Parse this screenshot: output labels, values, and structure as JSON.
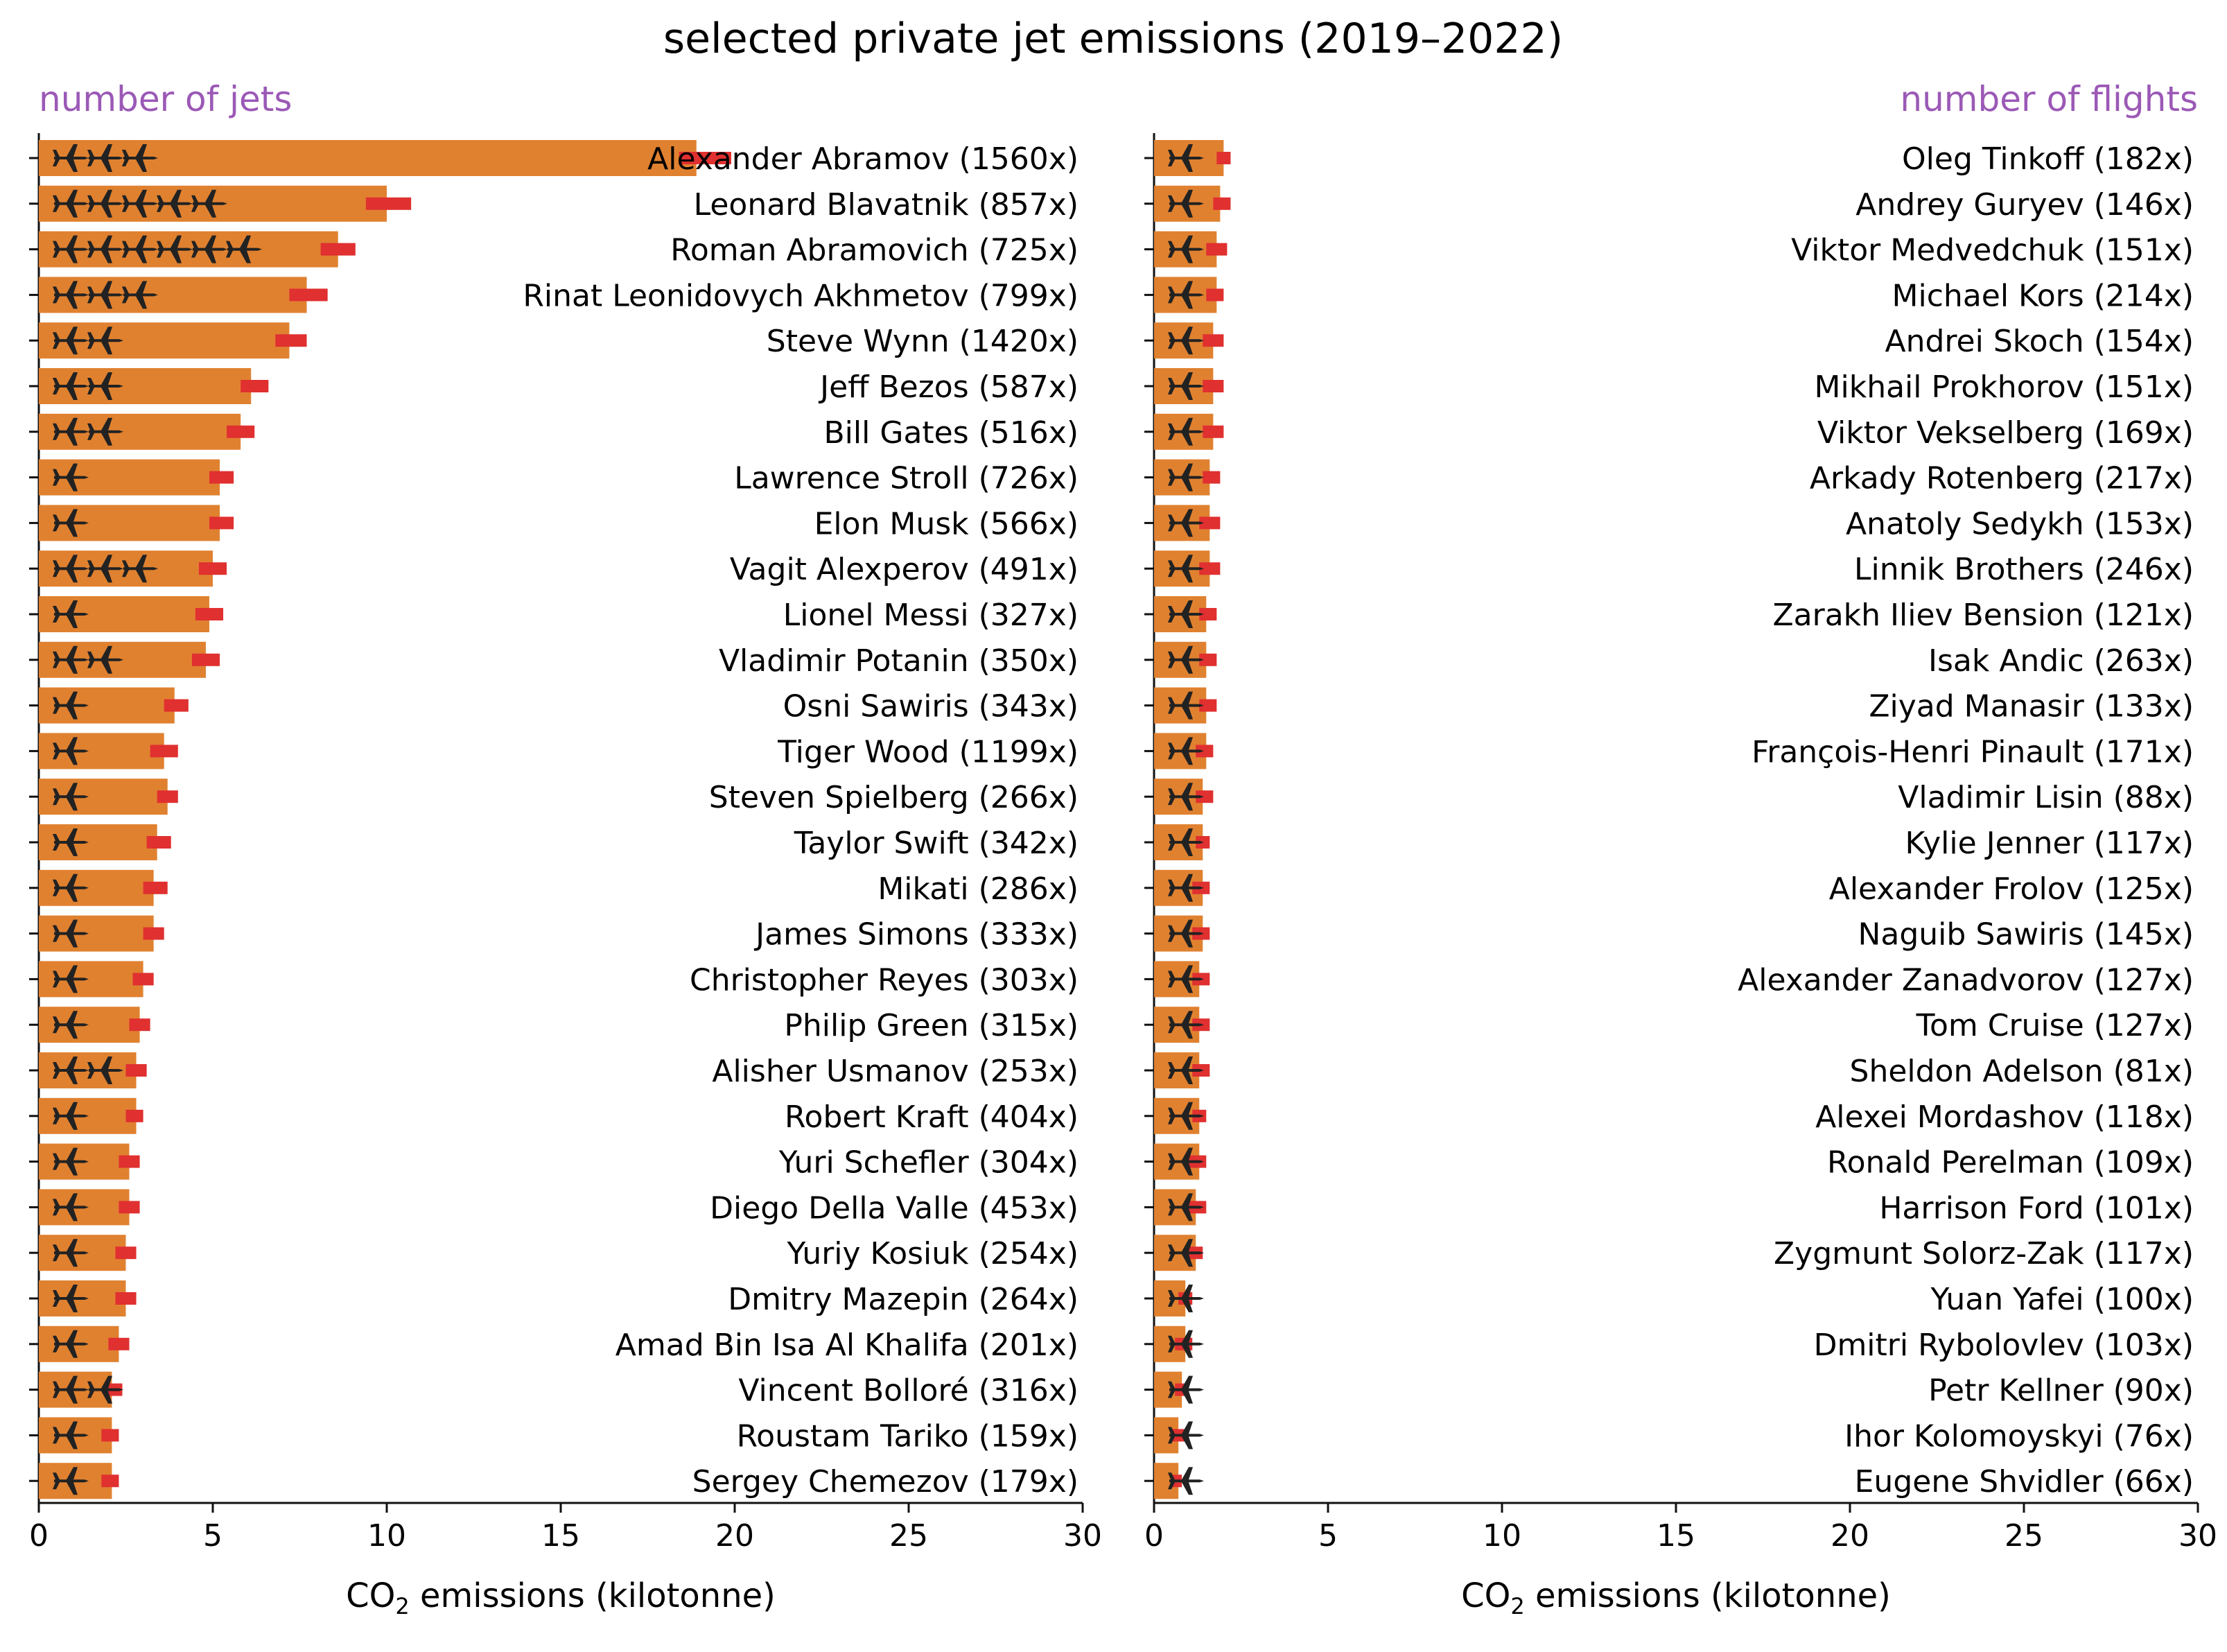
{
  "title": "selected private jet emissions (2019–2022)",
  "colors": {
    "bar": "#e08130",
    "error": "#e03030",
    "jet": "#222222",
    "accent": "#9b59b6",
    "axis": "#111111"
  },
  "chart_data": [
    {
      "type": "bar",
      "orientation": "horizontal",
      "subtitle": "number of jets",
      "xlabel_prefix": "CO",
      "xlabel_sub": "2",
      "xlabel_suffix": " emissions (kilotonne)",
      "xlim": [
        0,
        30
      ],
      "xticks": [
        0,
        5,
        10,
        15,
        20,
        25,
        30
      ],
      "items": [
        {
          "label": "Alexander Abramov (1560x)",
          "value": 18.9,
          "err_low": 18.4,
          "err_high": 19.9,
          "jets": 3
        },
        {
          "label": "Leonard Blavatnik (857x)",
          "value": 10.0,
          "err_low": 9.4,
          "err_high": 10.7,
          "jets": 5
        },
        {
          "label": "Roman Abramovich (725x)",
          "value": 8.6,
          "err_low": 8.1,
          "err_high": 9.1,
          "jets": 6
        },
        {
          "label": "Rinat Leonidovych Akhmetov (799x)",
          "value": 7.7,
          "err_low": 7.2,
          "err_high": 8.3,
          "jets": 3
        },
        {
          "label": "Steve Wynn (1420x)",
          "value": 7.2,
          "err_low": 6.8,
          "err_high": 7.7,
          "jets": 2
        },
        {
          "label": "Jeff Bezos (587x)",
          "value": 6.1,
          "err_low": 5.8,
          "err_high": 6.6,
          "jets": 2
        },
        {
          "label": "Bill Gates (516x)",
          "value": 5.8,
          "err_low": 5.4,
          "err_high": 6.2,
          "jets": 2
        },
        {
          "label": "Lawrence Stroll (726x)",
          "value": 5.2,
          "err_low": 4.9,
          "err_high": 5.6,
          "jets": 1
        },
        {
          "label": "Elon Musk (566x)",
          "value": 5.2,
          "err_low": 4.9,
          "err_high": 5.6,
          "jets": 1
        },
        {
          "label": "Vagit Alexperov (491x)",
          "value": 5.0,
          "err_low": 4.6,
          "err_high": 5.4,
          "jets": 3
        },
        {
          "label": "Lionel Messi (327x)",
          "value": 4.9,
          "err_low": 4.5,
          "err_high": 5.3,
          "jets": 1
        },
        {
          "label": "Vladimir Potanin (350x)",
          "value": 4.8,
          "err_low": 4.4,
          "err_high": 5.2,
          "jets": 2
        },
        {
          "label": "Osni Sawiris (343x)",
          "value": 3.9,
          "err_low": 3.6,
          "err_high": 4.3,
          "jets": 1
        },
        {
          "label": "Tiger Wood (1199x)",
          "value": 3.6,
          "err_low": 3.2,
          "err_high": 4.0,
          "jets": 1
        },
        {
          "label": "Steven Spielberg (266x)",
          "value": 3.7,
          "err_low": 3.4,
          "err_high": 4.0,
          "jets": 1
        },
        {
          "label": "Taylor Swift (342x)",
          "value": 3.4,
          "err_low": 3.1,
          "err_high": 3.8,
          "jets": 1
        },
        {
          "label": "Mikati (286x)",
          "value": 3.3,
          "err_low": 3.0,
          "err_high": 3.7,
          "jets": 1
        },
        {
          "label": "James Simons (333x)",
          "value": 3.3,
          "err_low": 3.0,
          "err_high": 3.6,
          "jets": 1
        },
        {
          "label": "Christopher Reyes (303x)",
          "value": 3.0,
          "err_low": 2.7,
          "err_high": 3.3,
          "jets": 1
        },
        {
          "label": "Philip Green (315x)",
          "value": 2.9,
          "err_low": 2.6,
          "err_high": 3.2,
          "jets": 1
        },
        {
          "label": "Alisher Usmanov (253x)",
          "value": 2.8,
          "err_low": 2.5,
          "err_high": 3.1,
          "jets": 2
        },
        {
          "label": "Robert Kraft (404x)",
          "value": 2.8,
          "err_low": 2.5,
          "err_high": 3.0,
          "jets": 1
        },
        {
          "label": "Yuri Schefler (304x)",
          "value": 2.6,
          "err_low": 2.3,
          "err_high": 2.9,
          "jets": 1
        },
        {
          "label": "Diego Della Valle (453x)",
          "value": 2.6,
          "err_low": 2.3,
          "err_high": 2.9,
          "jets": 1
        },
        {
          "label": "Yuriy Kosiuk (254x)",
          "value": 2.5,
          "err_low": 2.2,
          "err_high": 2.8,
          "jets": 1
        },
        {
          "label": "Dmitry Mazepin (264x)",
          "value": 2.5,
          "err_low": 2.2,
          "err_high": 2.8,
          "jets": 1
        },
        {
          "label": "Amad Bin Isa Al Khalifa (201x)",
          "value": 2.3,
          "err_low": 2.0,
          "err_high": 2.6,
          "jets": 1
        },
        {
          "label": "Vincent Bolloré (316x)",
          "value": 2.1,
          "err_low": 1.9,
          "err_high": 2.4,
          "jets": 2
        },
        {
          "label": "Roustam Tariko (159x)",
          "value": 2.1,
          "err_low": 1.8,
          "err_high": 2.3,
          "jets": 1
        },
        {
          "label": "Sergey Chemezov (179x)",
          "value": 2.1,
          "err_low": 1.8,
          "err_high": 2.3,
          "jets": 1
        }
      ]
    },
    {
      "type": "bar",
      "orientation": "horizontal",
      "subtitle": "number of flights",
      "xlabel_prefix": "CO",
      "xlabel_sub": "2",
      "xlabel_suffix": " emissions (kilotonne)",
      "xlim": [
        0,
        30
      ],
      "xticks": [
        0,
        5,
        10,
        15,
        20,
        25,
        30
      ],
      "items": [
        {
          "label": "Oleg Tinkoff (182x)",
          "value": 2.0,
          "err_low": 1.8,
          "err_high": 2.2,
          "jets": 1
        },
        {
          "label": "Andrey Guryev (146x)",
          "value": 1.9,
          "err_low": 1.7,
          "err_high": 2.2,
          "jets": 1
        },
        {
          "label": "Viktor Medvedchuk (151x)",
          "value": 1.8,
          "err_low": 1.5,
          "err_high": 2.1,
          "jets": 1
        },
        {
          "label": "Michael Kors (214x)",
          "value": 1.8,
          "err_low": 1.5,
          "err_high": 2.0,
          "jets": 1
        },
        {
          "label": "Andrei Skoch (154x)",
          "value": 1.7,
          "err_low": 1.4,
          "err_high": 2.0,
          "jets": 1
        },
        {
          "label": "Mikhail Prokhorov (151x)",
          "value": 1.7,
          "err_low": 1.4,
          "err_high": 2.0,
          "jets": 1
        },
        {
          "label": "Viktor Vekselberg (169x)",
          "value": 1.7,
          "err_low": 1.4,
          "err_high": 2.0,
          "jets": 1
        },
        {
          "label": "Arkady Rotenberg (217x)",
          "value": 1.6,
          "err_low": 1.4,
          "err_high": 1.9,
          "jets": 1
        },
        {
          "label": "Anatoly Sedykh (153x)",
          "value": 1.6,
          "err_low": 1.3,
          "err_high": 1.9,
          "jets": 1
        },
        {
          "label": "Linnik Brothers (246x)",
          "value": 1.6,
          "err_low": 1.3,
          "err_high": 1.9,
          "jets": 1
        },
        {
          "label": "Zarakh Iliev Bension (121x)",
          "value": 1.5,
          "err_low": 1.3,
          "err_high": 1.8,
          "jets": 1
        },
        {
          "label": "Isak Andic (263x)",
          "value": 1.5,
          "err_low": 1.3,
          "err_high": 1.8,
          "jets": 1
        },
        {
          "label": "Ziyad Manasir (133x)",
          "value": 1.5,
          "err_low": 1.3,
          "err_high": 1.8,
          "jets": 1
        },
        {
          "label": "François-Henri Pinault (171x)",
          "value": 1.5,
          "err_low": 1.2,
          "err_high": 1.7,
          "jets": 1
        },
        {
          "label": "Vladimir Lisin (88x)",
          "value": 1.4,
          "err_low": 1.2,
          "err_high": 1.7,
          "jets": 1
        },
        {
          "label": "Kylie Jenner (117x)",
          "value": 1.4,
          "err_low": 1.2,
          "err_high": 1.6,
          "jets": 1
        },
        {
          "label": "Alexander Frolov (125x)",
          "value": 1.4,
          "err_low": 1.1,
          "err_high": 1.6,
          "jets": 1
        },
        {
          "label": "Naguib Sawiris (145x)",
          "value": 1.4,
          "err_low": 1.1,
          "err_high": 1.6,
          "jets": 1
        },
        {
          "label": "Alexander Zanadvorov (127x)",
          "value": 1.3,
          "err_low": 1.1,
          "err_high": 1.6,
          "jets": 1
        },
        {
          "label": "Tom Cruise (127x)",
          "value": 1.3,
          "err_low": 1.1,
          "err_high": 1.6,
          "jets": 1
        },
        {
          "label": "Sheldon Adelson (81x)",
          "value": 1.3,
          "err_low": 1.1,
          "err_high": 1.6,
          "jets": 1
        },
        {
          "label": "Alexei Mordashov (118x)",
          "value": 1.3,
          "err_low": 1.1,
          "err_high": 1.5,
          "jets": 1
        },
        {
          "label": "Ronald Perelman (109x)",
          "value": 1.3,
          "err_low": 1.0,
          "err_high": 1.5,
          "jets": 1
        },
        {
          "label": "Harrison Ford (101x)",
          "value": 1.2,
          "err_low": 1.0,
          "err_high": 1.5,
          "jets": 1
        },
        {
          "label": "Zygmunt Solorz-Zak (117x)",
          "value": 1.2,
          "err_low": 1.0,
          "err_high": 1.4,
          "jets": 1
        },
        {
          "label": "Yuan Yafei (100x)",
          "value": 0.9,
          "err_low": 0.7,
          "err_high": 1.1,
          "jets": 1
        },
        {
          "label": "Dmitri Rybolovlev (103x)",
          "value": 0.9,
          "err_low": 0.6,
          "err_high": 1.1,
          "jets": 1
        },
        {
          "label": "Petr Kellner (90x)",
          "value": 0.8,
          "err_low": 0.6,
          "err_high": 1.0,
          "jets": 1
        },
        {
          "label": "Ihor Kolomoyskyi (76x)",
          "value": 0.7,
          "err_low": 0.5,
          "err_high": 0.9,
          "jets": 1
        },
        {
          "label": "Eugene Shvidler (66x)",
          "value": 0.7,
          "err_low": 0.5,
          "err_high": 0.8,
          "jets": 1
        }
      ]
    }
  ]
}
